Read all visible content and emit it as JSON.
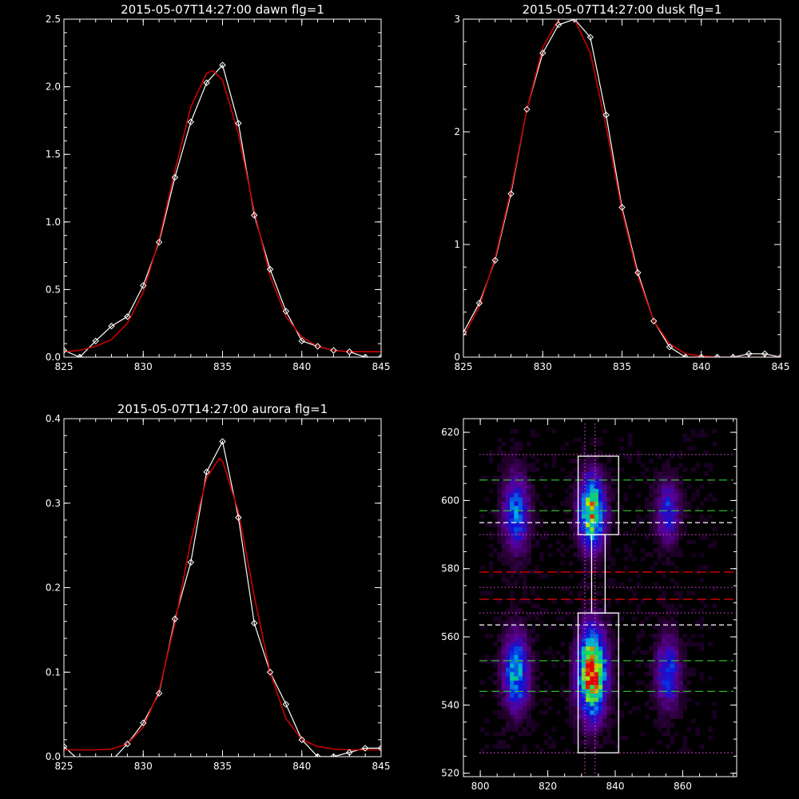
{
  "colors": {
    "background": "#000000",
    "axes": "#ffffff",
    "observed": "#ffffff",
    "fit": "#cc0000",
    "dotted_purple": "#cc44cc",
    "dashed_green": "#33cc33",
    "dashed_white": "#ffffff",
    "dashed_red": "#cc0000"
  },
  "chart_data": [
    {
      "id": "dawn",
      "type": "line",
      "title": "2015-05-07T14:27:00 dawn flg=1",
      "xlim": [
        825,
        845
      ],
      "ylim": [
        0,
        2.5
      ],
      "xticks": [
        "825",
        "830",
        "835",
        "840",
        "845"
      ],
      "yticks": [
        "0.0",
        "0.5",
        "1.0",
        "1.5",
        "2.0",
        "2.5"
      ],
      "series": [
        {
          "role": "observed",
          "marker": "diamond",
          "x": [
            825,
            826,
            827,
            828,
            829,
            830,
            831,
            832,
            833,
            834,
            835,
            836,
            837,
            838,
            839,
            840,
            841,
            842,
            843,
            844,
            845
          ],
          "y": [
            0.05,
            0.0,
            0.12,
            0.23,
            0.3,
            0.53,
            0.85,
            1.33,
            1.74,
            2.03,
            2.16,
            1.73,
            1.05,
            0.65,
            0.34,
            0.12,
            0.08,
            0.05,
            0.04,
            0.0,
            0.0
          ]
        },
        {
          "role": "fit",
          "x": [
            825,
            826,
            827,
            828,
            829,
            830,
            831,
            832,
            833,
            834,
            834.4,
            835,
            836,
            837,
            838,
            839,
            840,
            841,
            842,
            843,
            844,
            845
          ],
          "y": [
            0.04,
            0.05,
            0.08,
            0.13,
            0.25,
            0.48,
            0.87,
            1.38,
            1.85,
            2.1,
            2.12,
            2.05,
            1.65,
            1.08,
            0.6,
            0.3,
            0.15,
            0.08,
            0.05,
            0.04,
            0.04,
            0.04
          ]
        }
      ]
    },
    {
      "id": "dusk",
      "type": "line",
      "title": "2015-05-07T14:27:00 dusk flg=1",
      "xlim": [
        825,
        845
      ],
      "ylim": [
        0,
        3
      ],
      "xticks": [
        "825",
        "830",
        "835",
        "840",
        "845"
      ],
      "yticks": [
        "0",
        "1",
        "2",
        "3"
      ],
      "series": [
        {
          "role": "observed",
          "marker": "diamond",
          "x": [
            825,
            826,
            827,
            828,
            829,
            830,
            831,
            832,
            833,
            834,
            835,
            836,
            837,
            838,
            839,
            840,
            841,
            842,
            843,
            844,
            845
          ],
          "y": [
            0.22,
            0.48,
            0.86,
            1.45,
            2.2,
            2.7,
            2.95,
            3.0,
            2.84,
            2.15,
            1.33,
            0.75,
            0.32,
            0.09,
            0.0,
            0.0,
            0.0,
            0.0,
            0.03,
            0.03,
            0.0
          ]
        },
        {
          "role": "fit",
          "x": [
            825,
            826,
            827,
            828,
            829,
            830,
            831,
            831.6,
            832,
            833,
            834,
            835,
            836,
            837,
            838,
            839,
            840,
            841,
            842,
            843,
            844,
            845
          ],
          "y": [
            0.18,
            0.45,
            0.88,
            1.48,
            2.2,
            2.75,
            3.0,
            3.05,
            3.0,
            2.7,
            2.05,
            1.3,
            0.72,
            0.32,
            0.12,
            0.03,
            0.01,
            0.0,
            0.0,
            0.0,
            0.0,
            0.0
          ]
        }
      ]
    },
    {
      "id": "aurora",
      "type": "line",
      "title": "2015-05-07T14:27:00 aurora flg=1",
      "xlim": [
        825,
        845
      ],
      "ylim": [
        0,
        0.4
      ],
      "xticks": [
        "825",
        "830",
        "835",
        "840",
        "845"
      ],
      "yticks": [
        "0.0",
        "0.1",
        "0.2",
        "0.3",
        "0.4"
      ],
      "series": [
        {
          "role": "observed",
          "marker": "diamond",
          "x": [
            825,
            826,
            827,
            828,
            829,
            830,
            831,
            832,
            833,
            834,
            835,
            836,
            837,
            838,
            839,
            840,
            841,
            842,
            843,
            844,
            845
          ],
          "y": [
            0.012,
            -0.005,
            -0.005,
            -0.005,
            0.015,
            0.04,
            0.075,
            0.163,
            0.23,
            0.337,
            0.373,
            0.283,
            0.158,
            0.1,
            0.062,
            0.02,
            0.0,
            0.0,
            0.005,
            0.01,
            0.01
          ]
        },
        {
          "role": "fit",
          "x": [
            825,
            826,
            827,
            828,
            829,
            830,
            831,
            832,
            833,
            834,
            834.8,
            835,
            836,
            837,
            838,
            839,
            840,
            841,
            842,
            843,
            844,
            845
          ],
          "y": [
            0.008,
            0.008,
            0.008,
            0.009,
            0.015,
            0.035,
            0.078,
            0.158,
            0.255,
            0.33,
            0.353,
            0.35,
            0.29,
            0.19,
            0.1,
            0.045,
            0.02,
            0.012,
            0.009,
            0.008,
            0.008,
            0.008
          ]
        }
      ]
    },
    {
      "id": "image",
      "type": "heatmap",
      "title": "",
      "xlim": [
        795,
        876
      ],
      "ylim": [
        519,
        624
      ],
      "xticks": [
        "800",
        "820",
        "840",
        "860"
      ],
      "yticks": [
        "520",
        "540",
        "560",
        "580",
        "600",
        "620"
      ],
      "blobs": [
        {
          "x": 810,
          "y": 596,
          "sx": 2.6,
          "sy": 7.5,
          "amp": 0.45
        },
        {
          "x": 810,
          "y": 549,
          "sx": 2.6,
          "sy": 7.5,
          "amp": 0.55
        },
        {
          "x": 832.5,
          "y": 596,
          "sx": 2.6,
          "sy": 7.0,
          "amp": 0.8
        },
        {
          "x": 832.5,
          "y": 549,
          "sx": 2.8,
          "sy": 8.5,
          "amp": 1.0
        },
        {
          "x": 855,
          "y": 596,
          "sx": 2.4,
          "sy": 6.0,
          "amp": 0.35
        },
        {
          "x": 855,
          "y": 549,
          "sx": 2.4,
          "sy": 7.0,
          "amp": 0.4
        }
      ],
      "boxes": [
        {
          "x0": 829,
          "x1": 841,
          "y0": 590,
          "y1": 613
        },
        {
          "x0": 829,
          "x1": 841,
          "y0": 526,
          "y1": 567
        },
        {
          "x0": 833,
          "x1": 837,
          "y0": 567,
          "y1": 590
        }
      ],
      "vlines": [
        {
          "x": 831,
          "style": "dotted_purple"
        },
        {
          "x": 834,
          "style": "dotted_purple"
        }
      ],
      "hlines": [
        {
          "y": 613.5,
          "style": "dotted_purple"
        },
        {
          "y": 606,
          "style": "dashed_green"
        },
        {
          "y": 597,
          "style": "dashed_green"
        },
        {
          "y": 593.5,
          "style": "dashed_white"
        },
        {
          "y": 590,
          "style": "dotted_purple"
        },
        {
          "y": 579,
          "style": "dashed_red"
        },
        {
          "y": 574.5,
          "style": "dotted_purple"
        },
        {
          "y": 571,
          "style": "dashed_red"
        },
        {
          "y": 567,
          "style": "dotted_purple"
        },
        {
          "y": 563.5,
          "style": "dashed_white"
        },
        {
          "y": 553,
          "style": "dashed_green"
        },
        {
          "y": 544,
          "style": "dashed_green"
        },
        {
          "y": 526,
          "style": "dotted_purple"
        }
      ]
    }
  ]
}
